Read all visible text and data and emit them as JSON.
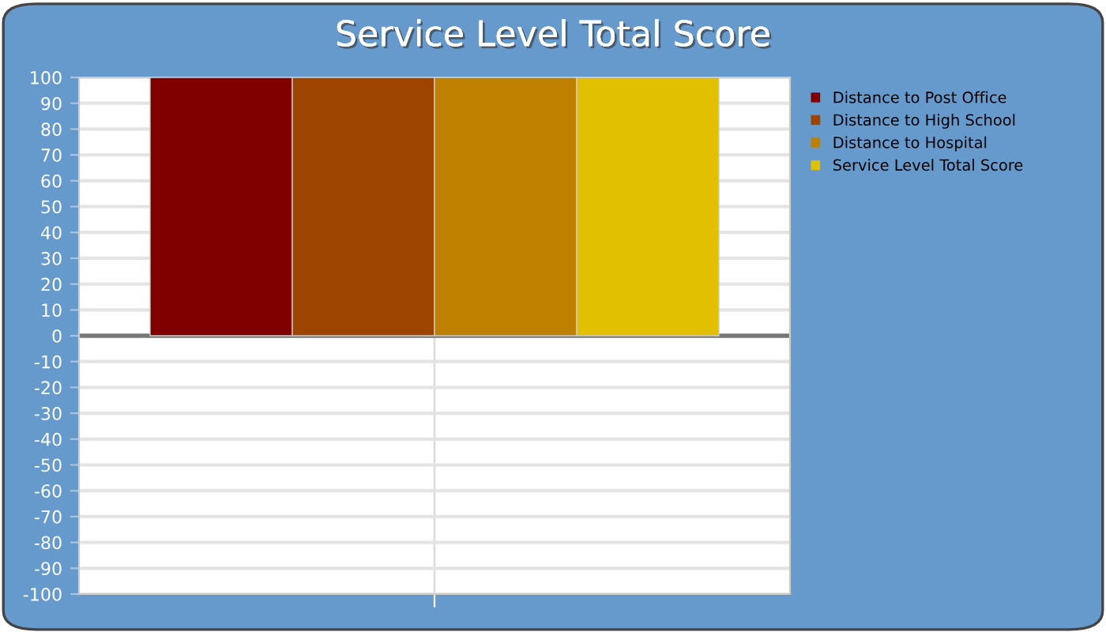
{
  "chart_data": {
    "type": "bar",
    "title": "Service Level Total Score",
    "categories": [
      null
    ],
    "series": [
      {
        "name": "Distance to Post Office",
        "color": "#800000",
        "values": [
          100
        ]
      },
      {
        "name": "Distance to High School",
        "color": "#9c4400",
        "values": [
          100
        ]
      },
      {
        "name": "Distance to Hospital",
        "color": "#bf8000",
        "values": [
          100
        ]
      },
      {
        "name": "Service Level Total Score",
        "color": "#e0c000",
        "values": [
          100
        ]
      }
    ],
    "ylim": [
      -100,
      100
    ],
    "yticks": [
      -100,
      -90,
      -80,
      -70,
      -60,
      -50,
      -40,
      -30,
      -20,
      -10,
      0,
      10,
      20,
      30,
      40,
      50,
      60,
      70,
      80,
      90,
      100
    ],
    "ref_lines": [
      {
        "axis": "y",
        "value": 0,
        "color": "#777777"
      }
    ],
    "grid": true,
    "legend": "right"
  }
}
